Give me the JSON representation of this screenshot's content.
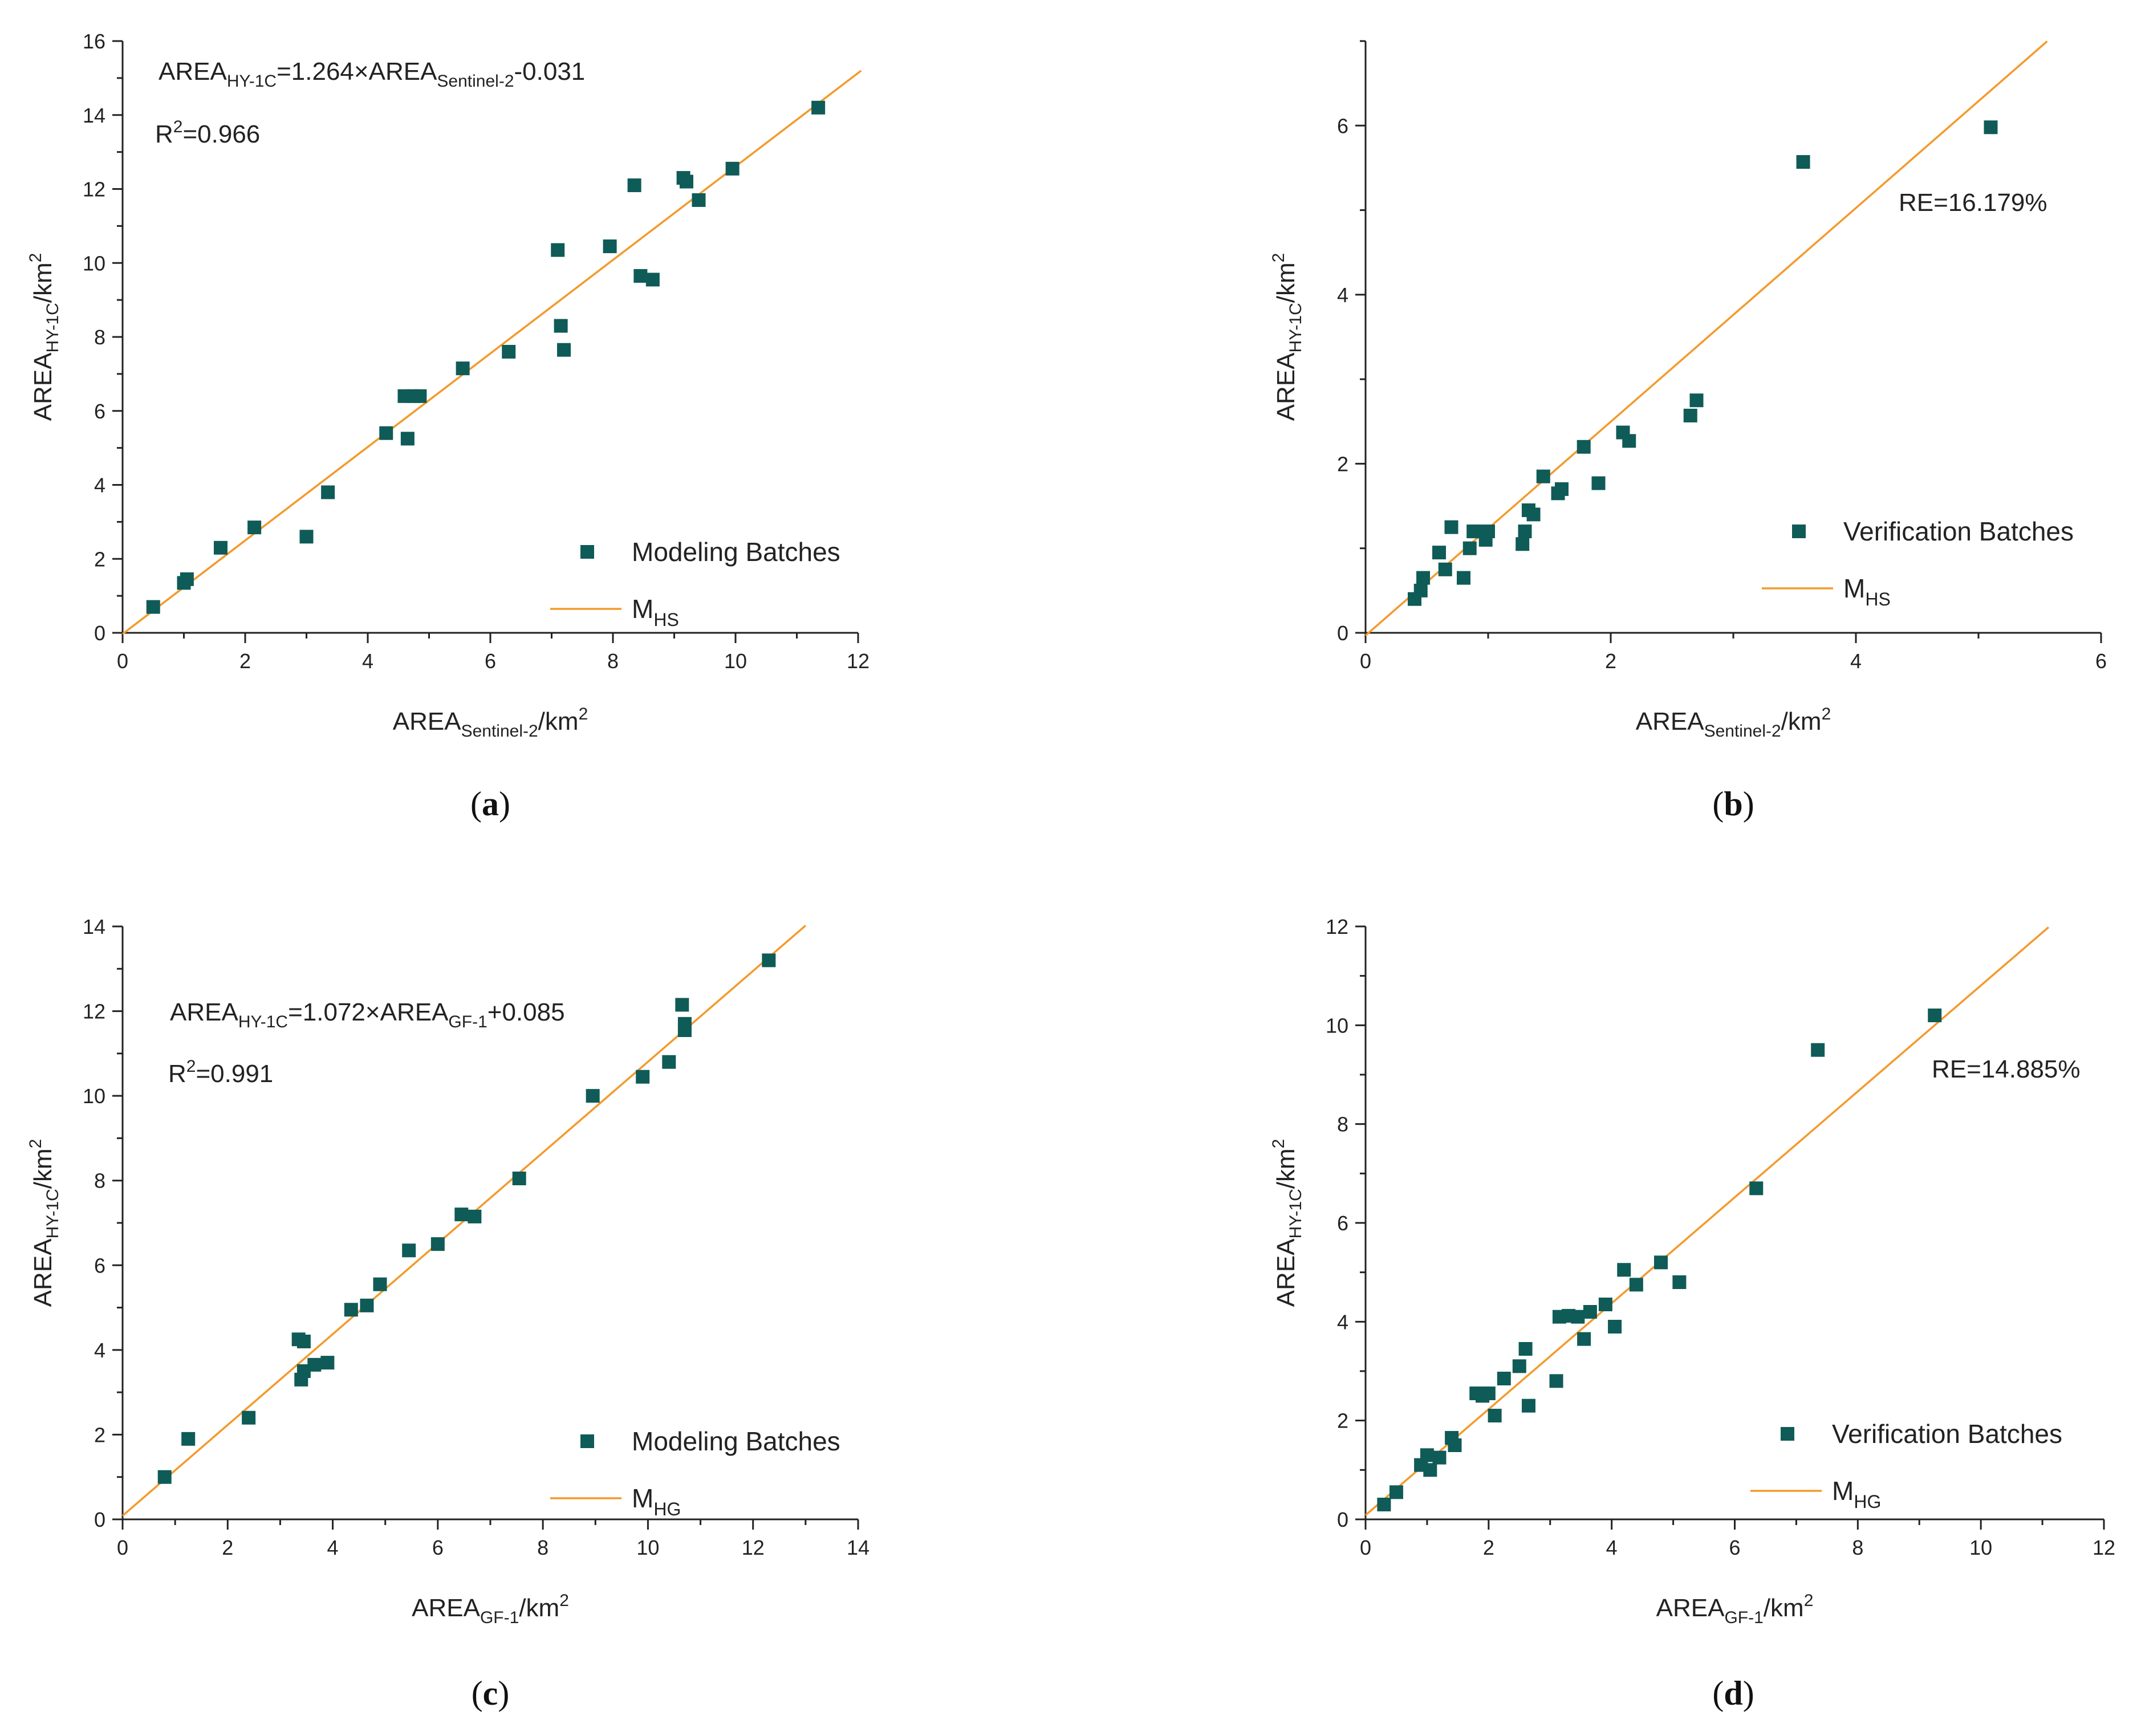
{
  "figure": {
    "colors": {
      "marker": "#0f5b57",
      "line": "#f39a2c",
      "axis": "#222222"
    }
  },
  "chart_data": [
    {
      "id": "a",
      "type": "scatter",
      "panel_label": "a",
      "xlabel_main": "AREA",
      "xlabel_sub": "Sentinel-2",
      "xlabel_unit": "/km",
      "xlabel_sup": "2",
      "ylabel_main": "AREA",
      "ylabel_sub": "HY-1C",
      "ylabel_unit": "/km",
      "ylabel_sup": "2",
      "xlim": [
        0,
        12
      ],
      "ylim": [
        0,
        16
      ],
      "xticks": [
        0,
        2,
        4,
        6,
        8,
        10,
        12
      ],
      "yticks": [
        0,
        2,
        4,
        6,
        8,
        10,
        12,
        14,
        16
      ],
      "series": [
        {
          "name": "Modeling Batches",
          "points": [
            [
              0.5,
              0.7
            ],
            [
              1.0,
              1.35
            ],
            [
              1.05,
              1.45
            ],
            [
              1.6,
              2.3
            ],
            [
              2.15,
              2.85
            ],
            [
              3.0,
              2.6
            ],
            [
              3.35,
              3.8
            ],
            [
              4.3,
              5.4
            ],
            [
              4.6,
              6.4
            ],
            [
              4.75,
              6.4
            ],
            [
              4.85,
              6.4
            ],
            [
              4.65,
              5.25
            ],
            [
              5.55,
              7.15
            ],
            [
              6.3,
              7.6
            ],
            [
              7.1,
              10.35
            ],
            [
              7.15,
              8.3
            ],
            [
              7.2,
              7.65
            ],
            [
              7.95,
              10.45
            ],
            [
              8.35,
              12.1
            ],
            [
              8.45,
              9.65
            ],
            [
              8.65,
              9.55
            ],
            [
              9.15,
              12.3
            ],
            [
              9.2,
              12.2
            ],
            [
              9.4,
              11.7
            ],
            [
              9.95,
              12.55
            ],
            [
              11.35,
              14.2
            ]
          ]
        }
      ],
      "line": {
        "name": "M",
        "name_sub": "HS",
        "slope": 1.264,
        "intercept": -0.031,
        "x_range": [
          0,
          12.05
        ]
      },
      "annotations": {
        "eq_main": "AREA",
        "eq_sub1": "HY-1C",
        "eq_mid": "=1.264×AREA",
        "eq_sub2": "Sentinel-2",
        "eq_tail": "-0.031",
        "r2_main": "R",
        "r2_sup": "2",
        "r2_tail": "=0.966"
      }
    },
    {
      "id": "b",
      "type": "scatter",
      "panel_label": "b",
      "xlabel_main": "AREA",
      "xlabel_sub": "Sentinel-2",
      "xlabel_unit": "/km",
      "xlabel_sup": "2",
      "ylabel_main": "AREA",
      "ylabel_sub": "HY-1C",
      "ylabel_unit": "/km",
      "ylabel_sup": "2",
      "xlim": [
        0,
        6
      ],
      "ylim": [
        0,
        7
      ],
      "xticks": [
        0,
        2,
        4,
        6
      ],
      "yticks": [
        0,
        2,
        4,
        6
      ],
      "series": [
        {
          "name": "Verification Batches",
          "points": [
            [
              0.4,
              0.4
            ],
            [
              0.45,
              0.5
            ],
            [
              0.47,
              0.65
            ],
            [
              0.6,
              0.95
            ],
            [
              0.65,
              0.75
            ],
            [
              0.7,
              1.25
            ],
            [
              0.8,
              0.65
            ],
            [
              0.85,
              1.0
            ],
            [
              0.88,
              1.2
            ],
            [
              0.9,
              1.2
            ],
            [
              0.98,
              1.1
            ],
            [
              1.0,
              1.2
            ],
            [
              1.28,
              1.05
            ],
            [
              1.3,
              1.2
            ],
            [
              1.33,
              1.45
            ],
            [
              1.37,
              1.4
            ],
            [
              1.45,
              1.85
            ],
            [
              1.57,
              1.65
            ],
            [
              1.6,
              1.7
            ],
            [
              1.78,
              2.2
            ],
            [
              1.9,
              1.77
            ],
            [
              2.1,
              2.37
            ],
            [
              2.15,
              2.27
            ],
            [
              2.65,
              2.57
            ],
            [
              2.7,
              2.75
            ],
            [
              3.57,
              5.57
            ],
            [
              5.1,
              5.98
            ]
          ]
        }
      ],
      "line": {
        "name": "M",
        "name_sub": "HS",
        "slope": 1.264,
        "intercept": -0.031,
        "x_range": [
          0,
          5.56
        ]
      },
      "annotations": {
        "re_text": "RE=16.179%"
      }
    },
    {
      "id": "c",
      "type": "scatter",
      "panel_label": "c",
      "xlabel_main": "AREA",
      "xlabel_sub": "GF-1",
      "xlabel_unit": "/km",
      "xlabel_sup": "2",
      "ylabel_main": "AREA",
      "ylabel_sub": "HY-1C",
      "ylabel_unit": "/km",
      "ylabel_sup": "2",
      "xlim": [
        0,
        14
      ],
      "ylim": [
        0,
        14
      ],
      "xticks": [
        0,
        2,
        4,
        6,
        8,
        10,
        12,
        14
      ],
      "yticks": [
        0,
        2,
        4,
        6,
        8,
        10,
        12,
        14
      ],
      "series": [
        {
          "name": "Modeling Batches",
          "points": [
            [
              0.8,
              1.0
            ],
            [
              1.25,
              1.9
            ],
            [
              2.4,
              2.4
            ],
            [
              3.35,
              4.25
            ],
            [
              3.45,
              4.2
            ],
            [
              3.4,
              3.3
            ],
            [
              3.45,
              3.5
            ],
            [
              3.65,
              3.65
            ],
            [
              3.9,
              3.7
            ],
            [
              4.35,
              4.95
            ],
            [
              4.65,
              5.05
            ],
            [
              4.9,
              5.55
            ],
            [
              5.45,
              6.35
            ],
            [
              6.0,
              6.5
            ],
            [
              6.45,
              7.2
            ],
            [
              6.7,
              7.15
            ],
            [
              7.55,
              8.05
            ],
            [
              8.95,
              10.0
            ],
            [
              9.9,
              10.45
            ],
            [
              10.4,
              10.8
            ],
            [
              10.65,
              12.15
            ],
            [
              10.7,
              11.7
            ],
            [
              10.7,
              11.55
            ],
            [
              12.3,
              13.2
            ]
          ]
        }
      ],
      "line": {
        "name": "M",
        "name_sub": "HG",
        "slope": 1.072,
        "intercept": 0.085,
        "x_range": [
          0,
          13.0
        ]
      },
      "annotations": {
        "eq_main": "AREA",
        "eq_sub1": "HY-1C",
        "eq_mid": "=1.072×AREA",
        "eq_sub2": "GF-1",
        "eq_tail": "+0.085",
        "r2_main": "R",
        "r2_sup": "2",
        "r2_tail": "=0.991"
      }
    },
    {
      "id": "d",
      "type": "scatter",
      "panel_label": "d",
      "xlabel_main": "AREA",
      "xlabel_sub": "GF-1",
      "xlabel_unit": "/km",
      "xlabel_sup": "2",
      "ylabel_main": "AREA",
      "ylabel_sub": "HY-1C",
      "ylabel_unit": "/km",
      "ylabel_sup": "2",
      "xlim": [
        0,
        12
      ],
      "ylim": [
        0,
        12
      ],
      "xticks": [
        0,
        2,
        4,
        6,
        8,
        10,
        12
      ],
      "yticks": [
        0,
        2,
        4,
        6,
        8,
        10,
        12
      ],
      "series": [
        {
          "name": "Verification Batches",
          "points": [
            [
              0.3,
              0.3
            ],
            [
              0.5,
              0.55
            ],
            [
              0.9,
              1.1
            ],
            [
              1.0,
              1.3
            ],
            [
              1.05,
              1.0
            ],
            [
              1.2,
              1.25
            ],
            [
              1.4,
              1.65
            ],
            [
              1.45,
              1.5
            ],
            [
              1.8,
              2.55
            ],
            [
              1.9,
              2.5
            ],
            [
              2.0,
              2.55
            ],
            [
              2.1,
              2.1
            ],
            [
              2.25,
              2.85
            ],
            [
              2.5,
              3.1
            ],
            [
              2.6,
              3.45
            ],
            [
              2.65,
              2.3
            ],
            [
              3.1,
              2.8
            ],
            [
              3.15,
              4.1
            ],
            [
              3.3,
              4.12
            ],
            [
              3.45,
              4.1
            ],
            [
              3.55,
              3.65
            ],
            [
              3.65,
              4.2
            ],
            [
              3.9,
              4.35
            ],
            [
              4.05,
              3.9
            ],
            [
              4.2,
              5.05
            ],
            [
              4.4,
              4.75
            ],
            [
              4.8,
              5.2
            ],
            [
              5.1,
              4.8
            ],
            [
              6.35,
              6.7
            ],
            [
              7.35,
              9.5
            ],
            [
              9.25,
              10.2
            ]
          ]
        }
      ],
      "line": {
        "name": "M",
        "name_sub": "HG",
        "slope": 1.072,
        "intercept": 0.085,
        "x_range": [
          0,
          11.1
        ]
      },
      "annotations": {
        "re_text": "RE=14.885%"
      }
    }
  ]
}
